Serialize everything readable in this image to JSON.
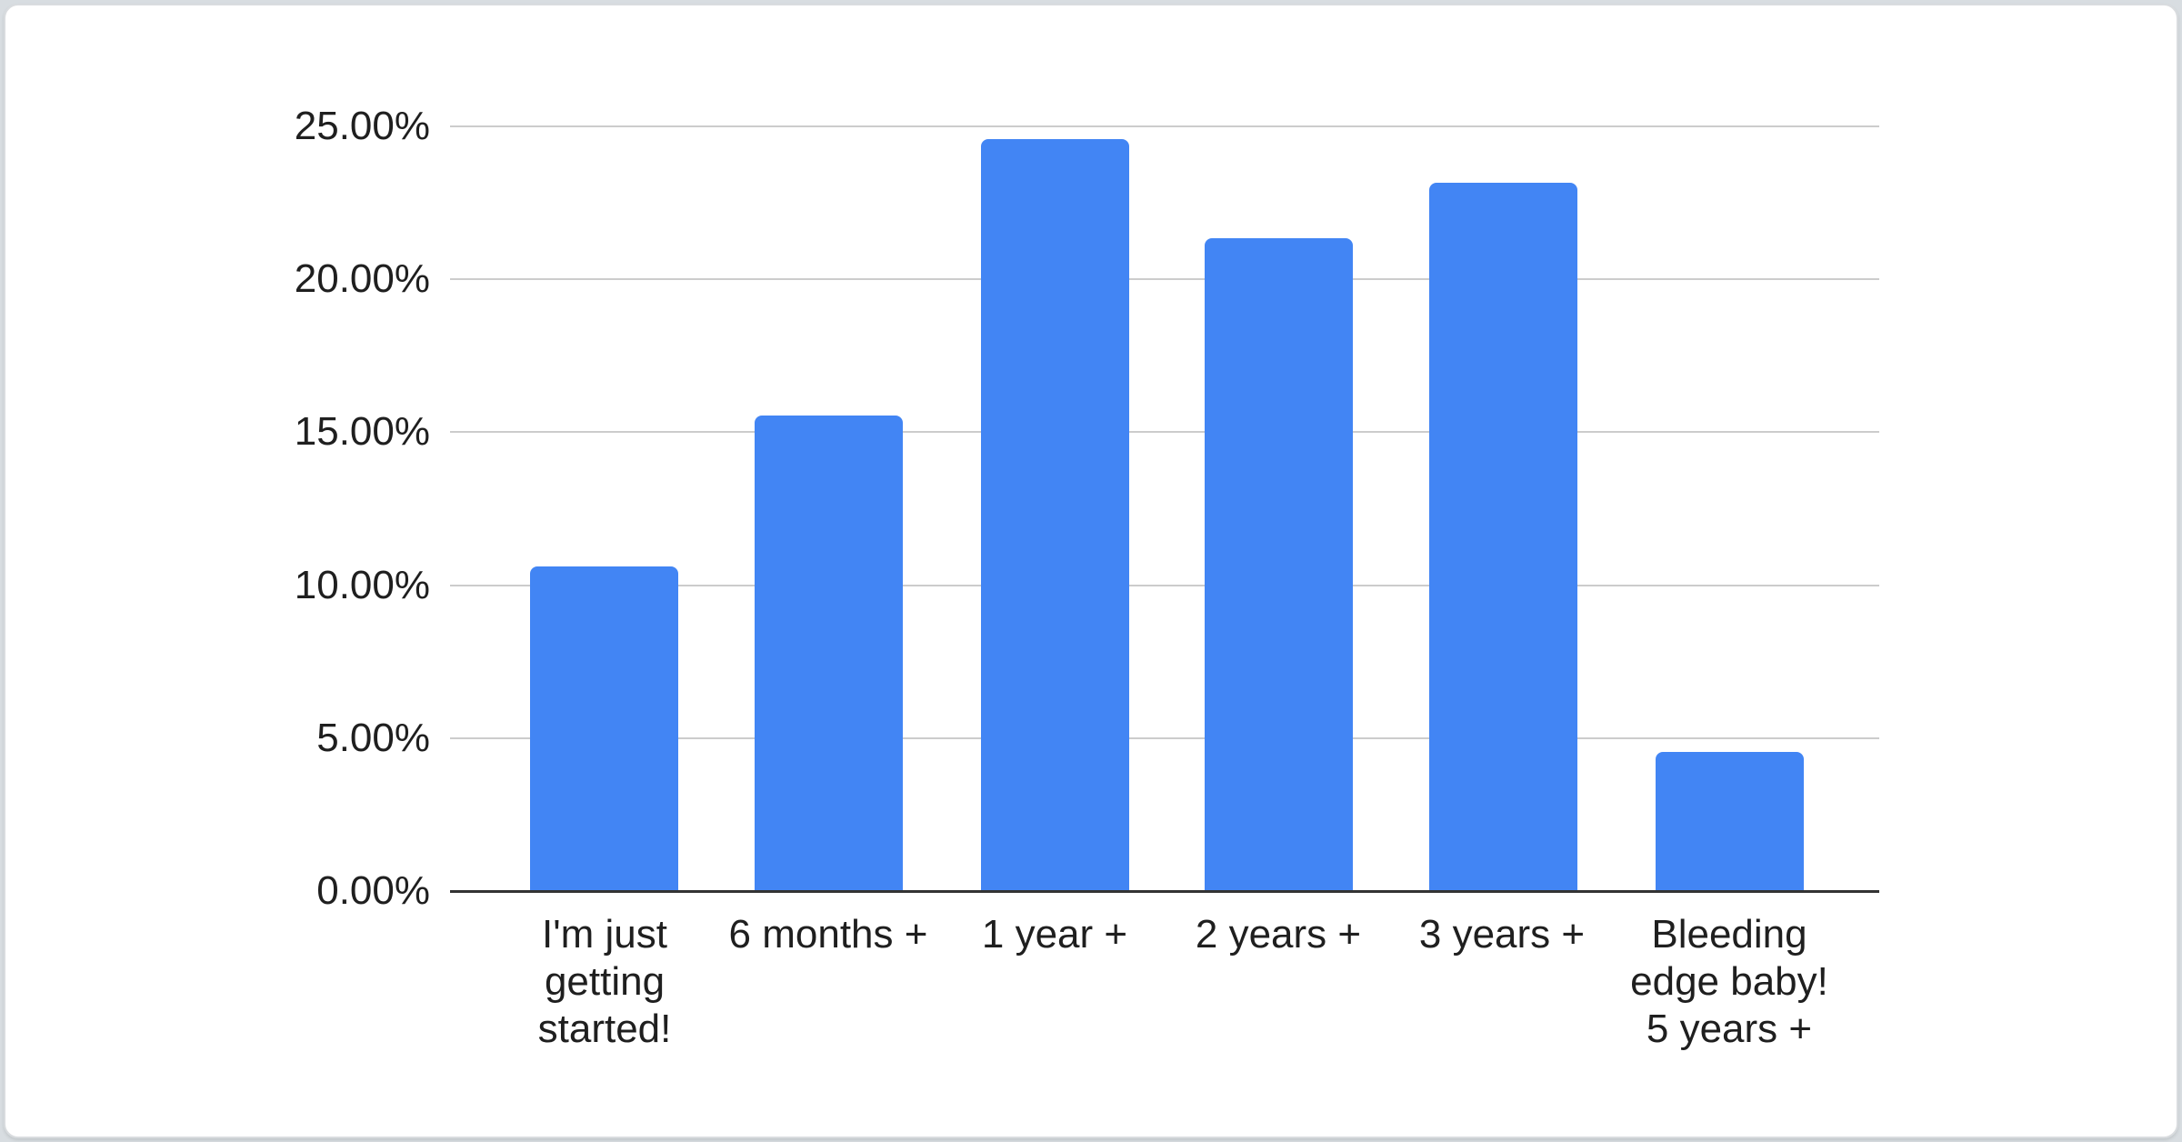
{
  "chart_data": {
    "type": "bar",
    "title": "",
    "xlabel": "",
    "ylabel": "",
    "categories": [
      "I'm just getting started!",
      "6 months +",
      "1 year +",
      "2 years +",
      "3 years +",
      "Bleeding edge baby! 5 years +"
    ],
    "category_display_lines": [
      [
        "I'm just",
        "getting",
        "started!"
      ],
      [
        "6 months +"
      ],
      [
        "1 year +"
      ],
      [
        "2 years +"
      ],
      [
        "3 years +"
      ],
      [
        "Bleeding",
        "edge baby!",
        "5 years +"
      ]
    ],
    "values": [
      10.6,
      15.55,
      24.6,
      21.35,
      23.15,
      4.55
    ],
    "ylim": [
      0,
      26.8
    ],
    "yticks": [
      0,
      5,
      10,
      15,
      20,
      25
    ],
    "ytick_labels": [
      "0.00%",
      "5.00%",
      "10.00%",
      "15.00%",
      "20.00%",
      "25.00%"
    ],
    "grid": true,
    "legend": "none",
    "colors": {
      "bar": "#4285F4",
      "gridline": "#cccccc",
      "baseline": "#333333",
      "tick_label": "#1f1f1f",
      "card_background": "#ffffff",
      "card_border": "#d9dcdf",
      "page_background": "#d8dde1"
    }
  }
}
